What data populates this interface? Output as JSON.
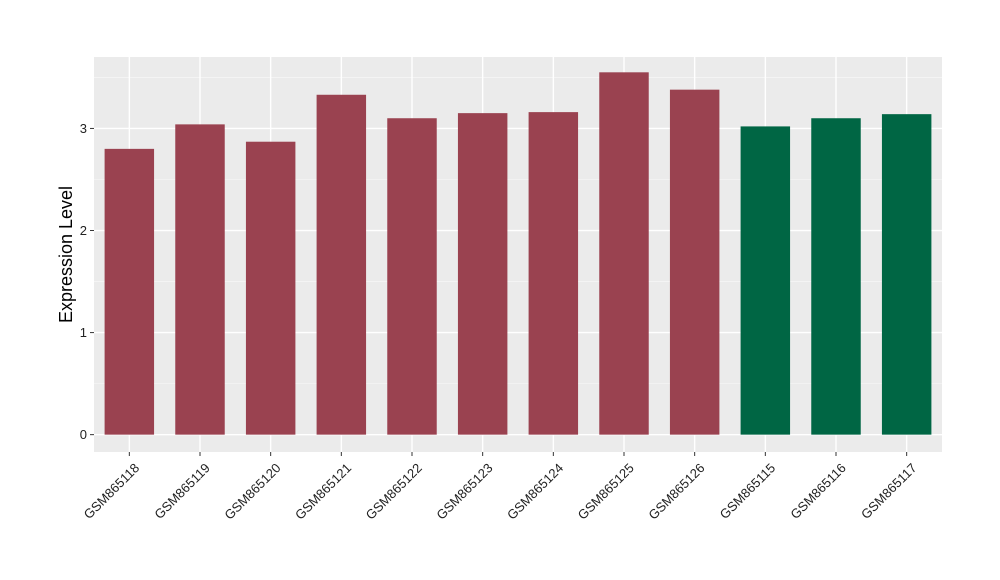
{
  "chart_data": {
    "type": "bar",
    "title": "",
    "xlabel": "",
    "ylabel": "Expression Level",
    "ylim": [
      -0.17,
      3.7
    ],
    "yticks": [
      0,
      1,
      2,
      3
    ],
    "grid": true,
    "legend": "none",
    "categories": [
      "GSM865118",
      "GSM865119",
      "GSM865120",
      "GSM865121",
      "GSM865122",
      "GSM865123",
      "GSM865124",
      "GSM865125",
      "GSM865126",
      "GSM865115",
      "GSM865116",
      "GSM865117"
    ],
    "values": [
      2.8,
      3.04,
      2.87,
      3.33,
      3.1,
      3.15,
      3.16,
      3.55,
      3.38,
      3.02,
      3.1,
      3.14
    ],
    "groups": [
      "a",
      "a",
      "a",
      "a",
      "a",
      "a",
      "a",
      "a",
      "a",
      "b",
      "b",
      "b"
    ],
    "colors": {
      "a": "#9a4250",
      "b": "#006644",
      "panel": "#ebebeb",
      "grid_major": "#ffffff",
      "grid_minor": "#f5f5f5"
    }
  }
}
